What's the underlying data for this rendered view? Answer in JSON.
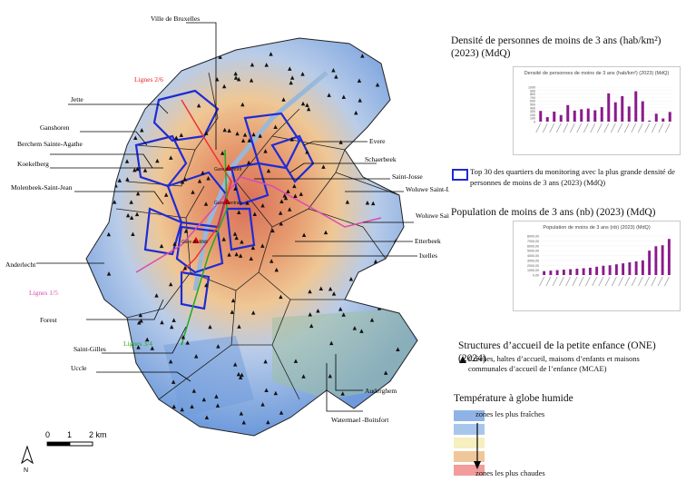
{
  "map": {
    "communes": [
      "Ville de Bruxelles",
      "Jette",
      "Ganshoren",
      "Berchem Sainte-Agathe",
      "Koekelberg",
      "Molenbeek-Saint-Jean",
      "Anderlecht",
      "Forest",
      "Saint-Gilles",
      "Uccle",
      "Evere",
      "Schaerbeek",
      "Saint-Josse",
      "Woluwe Saint-Lambert",
      "Woluwe Saint-Pierre",
      "Etterbeek",
      "Ixelles",
      "Auderghem",
      "Watermael -Boitsfort"
    ],
    "lines": [
      "Lignes 2/6",
      "Lignes 1/5",
      "Lignes 3/4"
    ],
    "stations": [
      "Gare du Nord",
      "Gare Centrale",
      "Gare du Midi"
    ],
    "scale": {
      "zero": "0",
      "one": "1",
      "two": "2 km"
    },
    "north_arrow": "N"
  },
  "chart_density": {
    "heading": "Densité de personnes de moins de 3 ans (hab/km²) (2023) (MdQ)",
    "inner_title": "Densité de personnes de moins de 3 ans (hab/km²) (2023) (MdQ)",
    "bar_color": "#8b1a8b"
  },
  "highlight": {
    "label": "Top 30 des quartiers du monitoring avec la plus grande densité de personnes de moins de 3 ans (2023) (MdQ)",
    "color": "#1e2bd6"
  },
  "chart_population": {
    "heading": "Population de moins de 3 ans (nb) (2023) (MdQ)",
    "inner_title": "Population de moins de 3 ans (nb) (2023) (MdQ)",
    "y_ticks": [
      "8000,00",
      "7000,00",
      "6000,00",
      "5000,00",
      "4000,00",
      "3000,00",
      "2000,00",
      "1000,00",
      "0,00"
    ],
    "bar_color": "#8b1a8b"
  },
  "chart_data": [
    {
      "type": "bar",
      "title": "Densité de personnes de moins de 3 ans (hab/km²) (2023) (MdQ)",
      "ylim": [
        0,
        1000
      ],
      "y_ticks": [
        "1000",
        "900",
        "800",
        "700",
        "600",
        "500",
        "400",
        "300",
        "200",
        "100",
        "0"
      ],
      "values": [
        310,
        130,
        290,
        190,
        480,
        320,
        360,
        380,
        330,
        420,
        820,
        560,
        740,
        440,
        880,
        590,
        30,
        230,
        90,
        280
      ]
    },
    {
      "type": "bar",
      "title": "Population de moins de 3 ans (nb) (2023) (MdQ)",
      "ylim": [
        0,
        8000
      ],
      "values": [
        800,
        900,
        1000,
        1100,
        1200,
        1300,
        1400,
        1500,
        1700,
        1900,
        2000,
        2200,
        2400,
        2600,
        2800,
        3000,
        5000,
        5900,
        6100,
        7400
      ]
    }
  ],
  "onee": {
    "heading": "Structures d’accueil de la petite enfance (ONE) (2024)",
    "item": "Crèches, haltes d’accueil, maisons d’enfants et maisons communales d’accueil de l’enfance  (MCAE)"
  },
  "temperature": {
    "heading": "Température à globe humide",
    "coolest": "zones les plus fraîches",
    "hottest": "zones les plus chaudes",
    "colors": [
      "#8fb3e6",
      "#a7c6ec",
      "#f6efc0",
      "#f0c79a",
      "#f29c9c"
    ]
  }
}
